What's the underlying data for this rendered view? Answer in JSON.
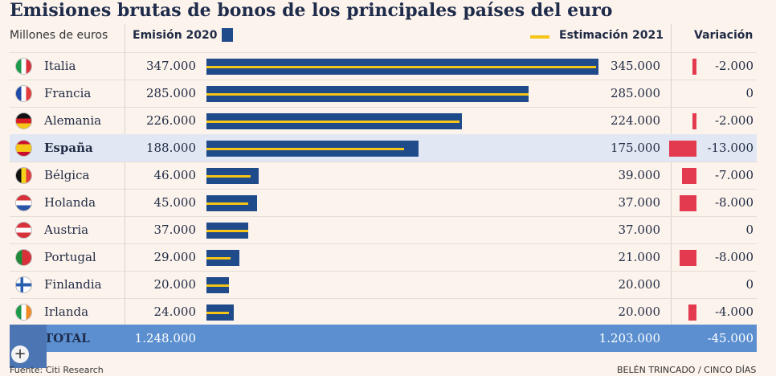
{
  "header": {
    "title": "Emisiones brutas de bonos de los principales países del euro",
    "units": "Millones de euros",
    "col_2020": "Emisión 2020",
    "col_2021": "Estimación 2021",
    "col_var": "Variación"
  },
  "colors": {
    "bar2020": "#1f4b8a",
    "bar2021": "#f5c518",
    "variation": "#e33a4f",
    "highlight": "#e2e8f3",
    "total": "#5b8fd0"
  },
  "chart_data": {
    "type": "bar",
    "title": "Emisiones brutas de bonos de los principales países del euro",
    "ylabel": "Millones de euros",
    "categories": [
      "Italia",
      "Francia",
      "Alemania",
      "España",
      "Bélgica",
      "Holanda",
      "Austria",
      "Portugal",
      "Finlandia",
      "Irlanda"
    ],
    "series": [
      {
        "name": "Emisión 2020",
        "values": [
          347000,
          285000,
          226000,
          188000,
          46000,
          45000,
          37000,
          29000,
          20000,
          24000
        ]
      },
      {
        "name": "Estimación 2021",
        "values": [
          345000,
          285000,
          224000,
          175000,
          39000,
          37000,
          37000,
          21000,
          20000,
          20000
        ]
      },
      {
        "name": "Variación",
        "values": [
          -2000,
          0,
          -2000,
          -13000,
          -7000,
          -8000,
          0,
          -8000,
          0,
          -4000
        ]
      }
    ],
    "xlim": [
      0,
      347000
    ]
  },
  "rows": [
    {
      "country": "Italia",
      "flag": "flag-italy",
      "v2020": "347.000",
      "v2021": "345.000",
      "var": "-2.000"
    },
    {
      "country": "Francia",
      "flag": "flag-france",
      "v2020": "285.000",
      "v2021": "285.000",
      "var": "0"
    },
    {
      "country": "Alemania",
      "flag": "flag-germany",
      "v2020": "226.000",
      "v2021": "224.000",
      "var": "-2.000"
    },
    {
      "country": "España",
      "flag": "flag-spain",
      "v2020": "188.000",
      "v2021": "175.000",
      "var": "-13.000"
    },
    {
      "country": "Bélgica",
      "flag": "flag-belgium",
      "v2020": "46.000",
      "v2021": "39.000",
      "var": "-7.000"
    },
    {
      "country": "Holanda",
      "flag": "flag-netherlands",
      "v2020": "45.000",
      "v2021": "37.000",
      "var": "-8.000"
    },
    {
      "country": "Austria",
      "flag": "flag-austria",
      "v2020": "37.000",
      "v2021": "37.000",
      "var": "0"
    },
    {
      "country": "Portugal",
      "flag": "flag-portugal",
      "v2020": "29.000",
      "v2021": "21.000",
      "var": "-8.000"
    },
    {
      "country": "Finlandia",
      "flag": "flag-finland",
      "v2020": "20.000",
      "v2021": "20.000",
      "var": "0"
    },
    {
      "country": "Irlanda",
      "flag": "flag-ireland",
      "v2020": "24.000",
      "v2021": "20.000",
      "var": "-4.000"
    }
  ],
  "total": {
    "label": "TOTAL",
    "v2020": "1.248.000",
    "v2021": "1.203.000",
    "var": "-45.000"
  },
  "footer": {
    "source": "Fuente: Citi Research",
    "credit": "BELÉN TRINCADO / CINCO DÍAS"
  }
}
